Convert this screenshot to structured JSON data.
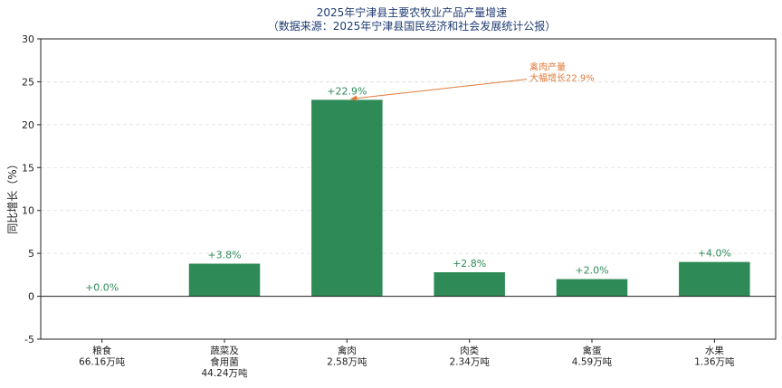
{
  "chart_data": {
    "type": "bar",
    "title_line1": "2025年宁津县主要农牧业产品产量增速",
    "title_line2": "（数据来源：2025年宁津县国民经济和社会发展统计公报）",
    "ylabel": "同比增长（%）",
    "ylim": [
      -5,
      30
    ],
    "yticks": [
      -5,
      0,
      5,
      10,
      15,
      20,
      25,
      30
    ],
    "grid": true,
    "categories": [
      {
        "name": "粮食",
        "volume": "66.16万吨"
      },
      {
        "name": "蔬菜及\n食用菌",
        "volume": "44.24万吨"
      },
      {
        "name": "禽肉",
        "volume": "2.58万吨"
      },
      {
        "name": "肉类",
        "volume": "2.34万吨"
      },
      {
        "name": "禽蛋",
        "volume": "4.59万吨"
      },
      {
        "name": "水果",
        "volume": "1.36万吨"
      }
    ],
    "values": [
      0.0,
      3.8,
      22.9,
      2.8,
      2.0,
      4.0
    ],
    "data_labels": [
      "+0.0%",
      "+3.8%",
      "+22.9%",
      "+2.8%",
      "+2.0%",
      "+4.0%"
    ],
    "annotation": {
      "text_line1": "禽肉产量",
      "text_line2": "大幅增长22.9%",
      "target_category_index": 2,
      "target_value": 22.9,
      "text_anchor_value": 25.3
    },
    "colors": {
      "bar": "#2e8b57",
      "label": "#2e8b57",
      "annotation": "#e07b39",
      "title": "#1f3b73",
      "axis": "#222222",
      "grid": "#dddddd"
    }
  }
}
